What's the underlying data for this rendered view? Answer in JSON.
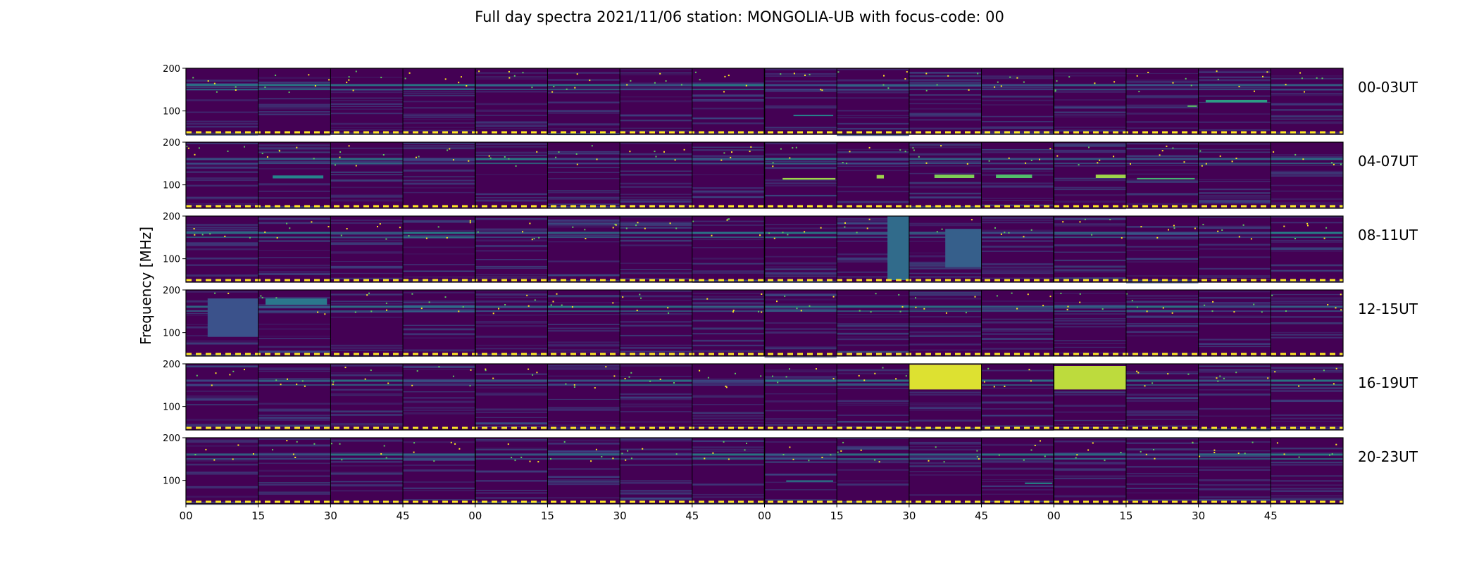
{
  "chart_data": {
    "type": "heatmap",
    "title": "Full day spectra 2021/11/06 station: MONGOLIA-UB with focus-code: 00",
    "ylabel": "Frequency [MHz]",
    "xlabel": "",
    "ylim": [
      45,
      200
    ],
    "yticks": [
      100,
      200
    ],
    "xticks": [
      "00",
      "15",
      "30",
      "45",
      "00",
      "15",
      "30",
      "45",
      "00",
      "15",
      "30",
      "45",
      "00",
      "15",
      "30",
      "45"
    ],
    "colormap": "viridis",
    "colors": {
      "low": "#440154",
      "mid": "#21918c",
      "high": "#fde725"
    },
    "rows": [
      {
        "label": "00-03UT",
        "hot_segments": [
          {
            "panel": 14,
            "from": 0.1,
            "to": 0.95,
            "freq": [
              120,
              126
            ],
            "level": 0.55
          },
          {
            "panel": 13,
            "from": 0.85,
            "to": 0.98,
            "freq": [
              110,
              113
            ],
            "level": 0.75
          },
          {
            "panel": 8,
            "from": 0.4,
            "to": 0.95,
            "freq": [
              88,
              91
            ],
            "level": 0.45
          }
        ]
      },
      {
        "label": "04-07UT",
        "hot_segments": [
          {
            "panel": 1,
            "from": 0.2,
            "to": 0.9,
            "freq": [
              115,
              122
            ],
            "level": 0.45
          },
          {
            "panel": 8,
            "from": 0.25,
            "to": 0.98,
            "freq": [
              112,
              116
            ],
            "level": 0.85
          },
          {
            "panel": 9,
            "from": 0.55,
            "to": 0.65,
            "freq": [
              115,
              123
            ],
            "level": 0.85
          },
          {
            "panel": 10,
            "from": 0.35,
            "to": 0.9,
            "freq": [
              116,
              124
            ],
            "level": 0.8
          },
          {
            "panel": 11,
            "from": 0.2,
            "to": 0.7,
            "freq": [
              116,
              124
            ],
            "level": 0.7
          },
          {
            "panel": 12,
            "from": 0.58,
            "to": 1.0,
            "freq": [
              116,
              124
            ],
            "level": 0.85
          },
          {
            "panel": 13,
            "from": 0.15,
            "to": 0.95,
            "freq": [
              113,
              116
            ],
            "level": 0.65
          }
        ]
      },
      {
        "label": "08-11UT",
        "hot_segments": [
          {
            "panel": 9,
            "from": 0.7,
            "to": 1.0,
            "freq": [
              50,
              200
            ],
            "level": 0.35
          },
          {
            "panel": 10,
            "from": 0.5,
            "to": 1.0,
            "freq": [
              80,
              170
            ],
            "level": 0.3
          }
        ]
      },
      {
        "label": "12-15UT",
        "hot_segments": [
          {
            "panel": 1,
            "from": 0.1,
            "to": 0.95,
            "freq": [
              165,
              180
            ],
            "level": 0.4
          },
          {
            "panel": 0,
            "from": 0.3,
            "to": 1.0,
            "freq": [
              90,
              180
            ],
            "level": 0.25
          }
        ]
      },
      {
        "label": "16-19UT",
        "hot_segments": [
          {
            "panel": 10,
            "from": 0.0,
            "to": 1.0,
            "freq": [
              140,
              198
            ],
            "level": 0.95
          },
          {
            "panel": 12,
            "from": 0.0,
            "to": 1.0,
            "freq": [
              140,
              195
            ],
            "level": 0.9
          }
        ]
      },
      {
        "label": "20-23UT",
        "hot_segments": [
          {
            "panel": 8,
            "from": 0.3,
            "to": 0.95,
            "freq": [
              97,
              100
            ],
            "level": 0.45
          },
          {
            "panel": 11,
            "from": 0.6,
            "to": 0.98,
            "freq": [
              92,
              95
            ],
            "level": 0.5
          }
        ]
      }
    ]
  }
}
